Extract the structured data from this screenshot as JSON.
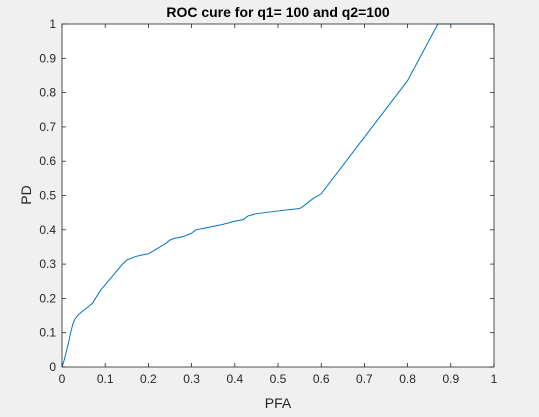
{
  "chart_data": {
    "type": "line",
    "title": "ROC cure for q1= 100 and q2=100",
    "xlabel": "PFA",
    "ylabel": "PD",
    "xlim": [
      0,
      1
    ],
    "ylim": [
      0,
      1
    ],
    "grid": false,
    "legend": "none",
    "x_ticks": [
      "0",
      "0.1",
      "0.2",
      "0.3",
      "0.4",
      "0.5",
      "0.6",
      "0.7",
      "0.8",
      "0.9",
      "1"
    ],
    "y_ticks": [
      "0",
      "0.1",
      "0.2",
      "0.3",
      "0.4",
      "0.5",
      "0.6",
      "0.7",
      "0.8",
      "0.9",
      "1"
    ],
    "colors": {
      "line": "#0072bd",
      "axes_bg": "#ffffff",
      "figure_bg": "#f0f0f0",
      "axis": "#262626"
    },
    "series": [
      {
        "x": [
          0,
          0.005,
          0.01,
          0.015,
          0.02,
          0.025,
          0.03,
          0.04,
          0.05,
          0.06,
          0.07,
          0.08,
          0.09,
          0.1,
          0.11,
          0.12,
          0.13,
          0.14,
          0.15,
          0.17,
          0.19,
          0.2,
          0.22,
          0.24,
          0.25,
          0.26,
          0.28,
          0.3,
          0.31,
          0.33,
          0.35,
          0.37,
          0.4,
          0.42,
          0.43,
          0.45,
          0.5,
          0.55,
          0.56,
          0.58,
          0.6,
          0.7,
          0.8,
          0.87,
          0.9,
          1.0
        ],
        "y": [
          0,
          0.02,
          0.045,
          0.07,
          0.1,
          0.125,
          0.14,
          0.155,
          0.165,
          0.175,
          0.185,
          0.205,
          0.225,
          0.24,
          0.255,
          0.27,
          0.285,
          0.3,
          0.312,
          0.322,
          0.328,
          0.33,
          0.345,
          0.36,
          0.37,
          0.375,
          0.38,
          0.39,
          0.4,
          0.405,
          0.41,
          0.415,
          0.425,
          0.43,
          0.44,
          0.447,
          0.455,
          0.462,
          0.47,
          0.49,
          0.505,
          0.67,
          0.835,
          1.0,
          1.0,
          1.0
        ]
      }
    ]
  }
}
